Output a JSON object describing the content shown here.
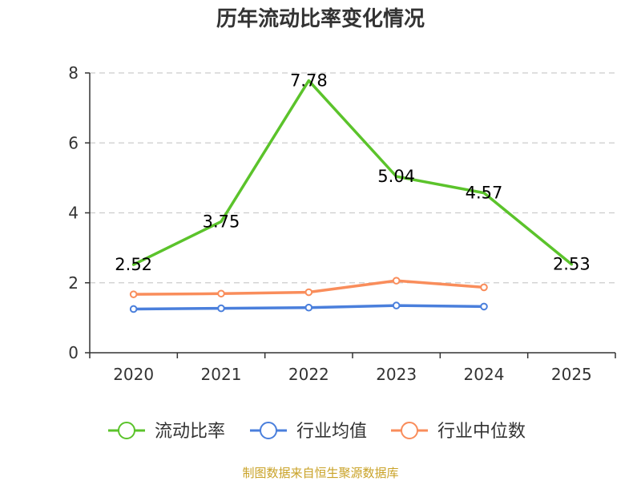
{
  "title": "历年流动比率变化情况",
  "source": "制图数据来自恒生聚源数据库",
  "chart_data": {
    "type": "line",
    "title": "历年流动比率变化情况",
    "categories": [
      "2020",
      "2021",
      "2022",
      "2023",
      "2024",
      "2025"
    ],
    "ylim": [
      0,
      8
    ],
    "yticks": [
      0,
      2,
      4,
      6,
      8
    ],
    "grid": true,
    "legend_position": "bottom",
    "series": [
      {
        "name": "流动比率",
        "color": "#5bc32b",
        "values": [
          2.52,
          3.75,
          7.78,
          5.04,
          4.57,
          2.53
        ],
        "labels": [
          "2.52",
          "3.75",
          "7.78",
          "5.04",
          "4.57",
          "2.53"
        ],
        "markers": false
      },
      {
        "name": "行业均值",
        "color": "#4a7fdc",
        "values": [
          1.25,
          1.27,
          1.29,
          1.35,
          1.32,
          null
        ],
        "markers": true
      },
      {
        "name": "行业中位数",
        "color": "#f98d5b",
        "values": [
          1.67,
          1.69,
          1.73,
          2.06,
          1.87,
          null
        ],
        "markers": true
      }
    ]
  }
}
